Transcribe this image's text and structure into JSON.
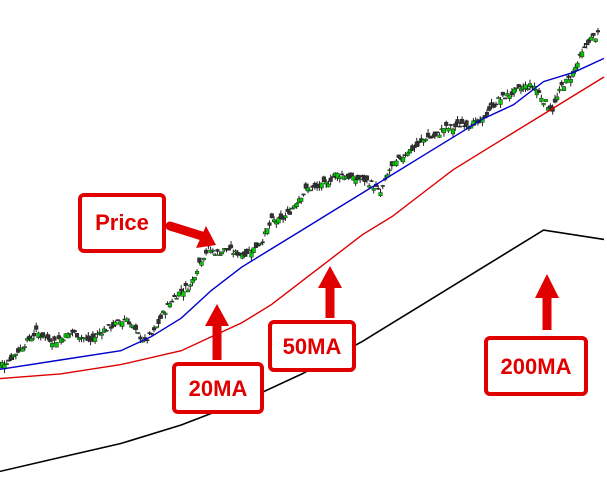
{
  "chart_data": {
    "type": "line",
    "title": "",
    "xlabel": "",
    "ylabel": "",
    "grid": false,
    "legend": "none",
    "x_range": [
      0,
      100
    ],
    "y_range": [
      0,
      100
    ],
    "series": [
      {
        "name": "Price",
        "kind": "candlestick",
        "color_up": "#00cc00",
        "color_down": "#333333",
        "x": [
          0,
          1.5,
          3,
          4.5,
          6,
          7.5,
          9,
          10.5,
          12,
          13.5,
          15,
          16.5,
          18,
          19.5,
          21,
          22.5,
          24,
          25.5,
          27,
          28.5,
          30,
          31.5,
          33,
          34.5,
          36,
          37.5,
          39,
          40.5,
          42,
          43.5,
          45,
          46.5,
          48,
          49.5,
          51,
          52.5,
          54,
          55.5,
          57,
          58.5,
          60,
          61.5,
          63,
          64.5,
          66,
          67.5,
          69,
          70.5,
          72,
          73.5,
          75,
          76.5,
          78,
          79.5,
          81,
          82.5,
          84,
          85.5,
          87,
          88.5,
          90,
          91.5,
          93,
          94.5,
          96,
          97.5,
          99
        ],
        "close": [
          24,
          25,
          27,
          29,
          31,
          30,
          29,
          30,
          31,
          30,
          29,
          31,
          32,
          33,
          34,
          31,
          29,
          31,
          35,
          38,
          40,
          41,
          46,
          49,
          48,
          49,
          48,
          48,
          49,
          51,
          55,
          55,
          57,
          60,
          62,
          62,
          63,
          65,
          65,
          64,
          64,
          63,
          61,
          66,
          68,
          70,
          71,
          73,
          73,
          75,
          75,
          76,
          76,
          76,
          79,
          81,
          82,
          83,
          84,
          84,
          81,
          79,
          84,
          86,
          90,
          94,
          95
        ]
      },
      {
        "name": "20MA",
        "color": "#0000cc",
        "x": [
          0,
          10,
          20,
          25,
          30,
          35,
          40,
          45,
          50,
          55,
          60,
          65,
          70,
          75,
          80,
          85,
          90,
          95,
          100
        ],
        "y": [
          23,
          25,
          27,
          30,
          34,
          40,
          45,
          49,
          53,
          57,
          61,
          65,
          69,
          73,
          77,
          80,
          85,
          87,
          90
        ]
      },
      {
        "name": "50MA",
        "color": "#dd0000",
        "x": [
          0,
          10,
          20,
          30,
          35,
          40,
          45,
          50,
          55,
          60,
          65,
          70,
          75,
          80,
          85,
          90,
          95,
          100
        ],
        "y": [
          21,
          22,
          24,
          27,
          30,
          33,
          37,
          42,
          47,
          52,
          56,
          61,
          66,
          70,
          74,
          78,
          82,
          86
        ]
      },
      {
        "name": "200MA",
        "color": "#000000",
        "x": [
          0,
          10,
          20,
          30,
          40,
          50,
          60,
          70,
          80,
          90,
          100
        ],
        "y": [
          1,
          4,
          7,
          11,
          16,
          22,
          29,
          37,
          45,
          53,
          51
        ]
      }
    ],
    "annotations": [
      "Price",
      "20MA",
      "50MA",
      "200MA"
    ]
  }
}
